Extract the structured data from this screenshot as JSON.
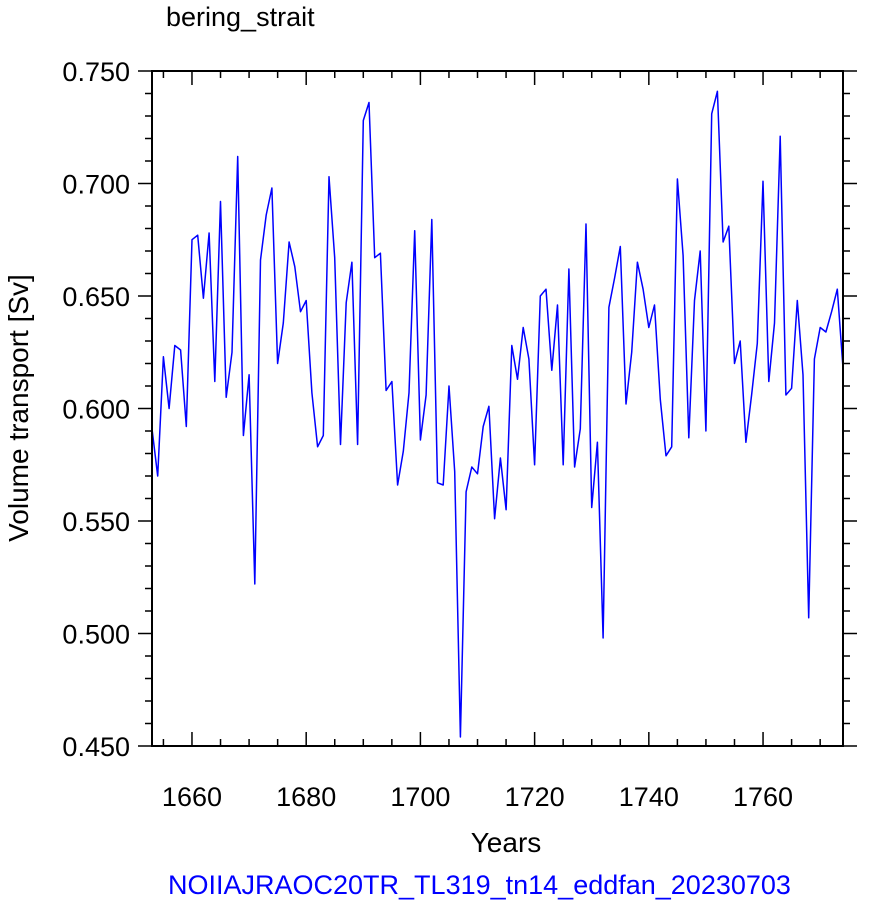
{
  "chart_data": {
    "type": "line",
    "title": "bering_strait",
    "xlabel": "Years",
    "ylabel": "Volume transport [Sv]",
    "footer": "NOIIAJRAOC20TR_TL319_tn14_eddfan_20230703",
    "xlim": [
      1653,
      1774
    ],
    "ylim": [
      0.45,
      0.75
    ],
    "x_ticks": [
      "1660",
      "1680",
      "1700",
      "1720",
      "1740",
      "1760"
    ],
    "y_ticks": [
      "0.450",
      "0.500",
      "0.550",
      "0.600",
      "0.650",
      "0.700",
      "0.750"
    ],
    "grid": false,
    "line_color": "#0000ff",
    "x": [
      1653,
      1654,
      1655,
      1656,
      1657,
      1658,
      1659,
      1660,
      1661,
      1662,
      1663,
      1664,
      1665,
      1666,
      1667,
      1668,
      1669,
      1670,
      1671,
      1672,
      1673,
      1674,
      1675,
      1676,
      1677,
      1678,
      1679,
      1680,
      1681,
      1682,
      1683,
      1684,
      1685,
      1686,
      1687,
      1688,
      1689,
      1690,
      1691,
      1692,
      1693,
      1694,
      1695,
      1696,
      1697,
      1698,
      1699,
      1700,
      1701,
      1702,
      1703,
      1704,
      1705,
      1706,
      1707,
      1708,
      1709,
      1710,
      1711,
      1712,
      1713,
      1714,
      1715,
      1716,
      1717,
      1718,
      1719,
      1720,
      1721,
      1722,
      1723,
      1724,
      1725,
      1726,
      1727,
      1728,
      1729,
      1730,
      1731,
      1732,
      1733,
      1734,
      1735,
      1736,
      1737,
      1738,
      1739,
      1740,
      1741,
      1742,
      1743,
      1744,
      1745,
      1746,
      1747,
      1748,
      1749,
      1750,
      1751,
      1752,
      1753,
      1754,
      1755,
      1756,
      1757,
      1758,
      1759,
      1760,
      1761,
      1762,
      1763,
      1764,
      1765,
      1766,
      1767,
      1768,
      1769,
      1770,
      1771,
      1772,
      1773,
      1774
    ],
    "y": [
      0.591,
      0.57,
      0.623,
      0.6,
      0.628,
      0.626,
      0.592,
      0.675,
      0.677,
      0.649,
      0.678,
      0.612,
      0.692,
      0.605,
      0.625,
      0.712,
      0.588,
      0.615,
      0.522,
      0.666,
      0.686,
      0.698,
      0.62,
      0.638,
      0.674,
      0.663,
      0.643,
      0.648,
      0.607,
      0.583,
      0.588,
      0.703,
      0.667,
      0.584,
      0.647,
      0.665,
      0.584,
      0.728,
      0.736,
      0.667,
      0.669,
      0.608,
      0.612,
      0.566,
      0.581,
      0.607,
      0.679,
      0.586,
      0.606,
      0.684,
      0.567,
      0.566,
      0.61,
      0.572,
      0.454,
      0.563,
      0.574,
      0.571,
      0.592,
      0.601,
      0.551,
      0.578,
      0.555,
      0.628,
      0.613,
      0.636,
      0.622,
      0.575,
      0.65,
      0.653,
      0.617,
      0.646,
      0.575,
      0.662,
      0.574,
      0.591,
      0.682,
      0.556,
      0.585,
      0.498,
      0.645,
      0.658,
      0.672,
      0.602,
      0.625,
      0.665,
      0.653,
      0.636,
      0.646,
      0.604,
      0.579,
      0.583,
      0.702,
      0.668,
      0.587,
      0.648,
      0.67,
      0.59,
      0.731,
      0.741,
      0.674,
      0.681,
      0.62,
      0.63,
      0.585,
      0.606,
      0.629,
      0.701,
      0.612,
      0.638,
      0.721,
      0.606,
      0.609,
      0.648,
      0.615,
      0.507,
      0.622,
      0.636,
      0.634,
      0.643,
      0.653,
      0.618
    ]
  }
}
